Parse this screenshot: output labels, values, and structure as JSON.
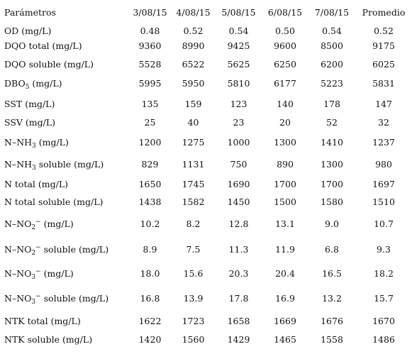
{
  "table": {
    "headers": [
      "Parámetros",
      "3/08/15",
      "4/08/15",
      "5/08/15",
      "6/08/15",
      "7/08/15",
      "Promedio"
    ],
    "rows": [
      {
        "p": {
          "pre": "OD (mg/L)"
        },
        "v": [
          "0.48",
          "0.52",
          "0.54",
          "0.50",
          "0.54",
          "0.52"
        ]
      },
      {
        "p": {
          "pre": "DQO total (mg/L)"
        },
        "v": [
          "9360",
          "8990",
          "9425",
          "9600",
          "8500",
          "9175"
        ]
      },
      {
        "p": {
          "pre": "DQO soluble (mg/L)"
        },
        "v": [
          "5528",
          "6522",
          "5625",
          "6250",
          "6200",
          "6025"
        ]
      },
      {
        "p": {
          "pre": "DBO",
          "sub": "5",
          "post": " (mg/L)"
        },
        "v": [
          "5995",
          "5950",
          "5810",
          "6177",
          "5223",
          "5831"
        ]
      },
      {
        "p": {
          "pre": "SST (mg/L)"
        },
        "v": [
          "135",
          "159",
          "123",
          "140",
          "178",
          "147"
        ]
      },
      {
        "p": {
          "pre": "SSV (mg/L)"
        },
        "v": [
          "25",
          "40",
          "23",
          "20",
          "52",
          "32"
        ]
      },
      {
        "p": {
          "pre": "N–NH",
          "sub": "3",
          "post": " (mg/L)"
        },
        "v": [
          "1200",
          "1275",
          "1000",
          "1300",
          "1410",
          "1237"
        ]
      },
      {
        "p": {
          "pre": "N–NH",
          "sub": "3",
          "post": " soluble (mg/L)"
        },
        "v": [
          "829",
          "1131",
          "750",
          "890",
          "1300",
          "980"
        ]
      },
      {
        "p": {
          "pre": "N total (mg/L)"
        },
        "v": [
          "1650",
          "1745",
          "1690",
          "1700",
          "1700",
          "1697"
        ]
      },
      {
        "p": {
          "pre": "N total soluble (mg/L)"
        },
        "v": [
          "1438",
          "1582",
          "1450",
          "1500",
          "1580",
          "1510"
        ]
      },
      {
        "p": {
          "pre": "N–NO",
          "sub": "2",
          "sup": "−",
          "post": " (mg/L)"
        },
        "v": [
          "10.2",
          "8.2",
          "12.8",
          "13.1",
          "9.0",
          "10.7"
        ]
      },
      {
        "p": {
          "pre": "N–NO",
          "sub": "2",
          "sup": "−",
          "post": " soluble (mg/L)"
        },
        "v": [
          "8.9",
          "7.5",
          "11.3",
          "11.9",
          "6.8",
          "9.3"
        ]
      },
      {
        "p": {
          "pre": "N–NO",
          "sub": "3",
          "sup": "−",
          "post": " (mg/L)"
        },
        "v": [
          "18.0",
          "15.6",
          "20.3",
          "20.4",
          "16.5",
          "18.2"
        ]
      },
      {
        "p": {
          "pre": "N–NO",
          "sub": "3",
          "sup": "−",
          "post": " soluble (mg/L)"
        },
        "v": [
          "16.8",
          "13.9",
          "17.8",
          "16.9",
          "13.2",
          "15.7"
        ]
      },
      {
        "p": {
          "pre": "NTK total (mg/L)"
        },
        "v": [
          "1622",
          "1723",
          "1658",
          "1669",
          "1676",
          "1670"
        ]
      },
      {
        "p": {
          "pre": "NTK soluble (mg/L)"
        },
        "v": [
          "1420",
          "1560",
          "1429",
          "1465",
          "1558",
          "1486"
        ]
      }
    ]
  }
}
